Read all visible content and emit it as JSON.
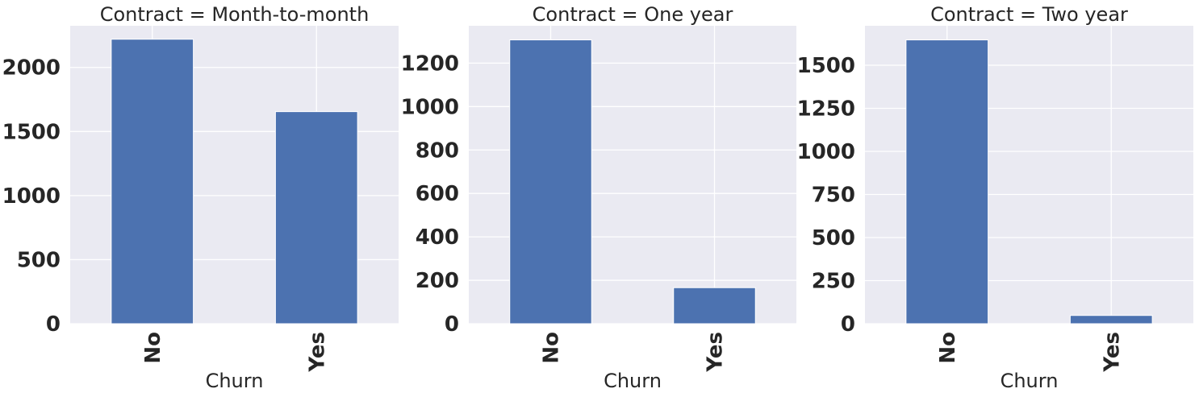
{
  "chart_data": [
    {
      "type": "bar",
      "title": "Contract = Month-to-month",
      "xlabel": "Churn",
      "ylabel": "",
      "categories": [
        "No",
        "Yes"
      ],
      "values": [
        2220,
        1655
      ],
      "ylim": [
        0,
        2325
      ],
      "yticks": [
        0,
        500,
        1000,
        1500,
        2000
      ],
      "grid": true
    },
    {
      "type": "bar",
      "title": "Contract = One year",
      "xlabel": "Churn",
      "ylabel": "",
      "categories": [
        "No",
        "Yes"
      ],
      "values": [
        1307,
        166
      ],
      "ylim": [
        0,
        1372
      ],
      "yticks": [
        0,
        200,
        400,
        600,
        800,
        1000,
        1200
      ],
      "grid": true
    },
    {
      "type": "bar",
      "title": "Contract = Two year",
      "xlabel": "Churn",
      "ylabel": "",
      "categories": [
        "No",
        "Yes"
      ],
      "values": [
        1647,
        48
      ],
      "ylim": [
        0,
        1729
      ],
      "yticks": [
        0,
        250,
        500,
        750,
        1000,
        1250,
        1500
      ],
      "grid": true
    }
  ],
  "colors": {
    "bar": "#4c72b0",
    "plot_background": "#eaeaf2",
    "grid": "#ffffff",
    "text": "#262626"
  }
}
